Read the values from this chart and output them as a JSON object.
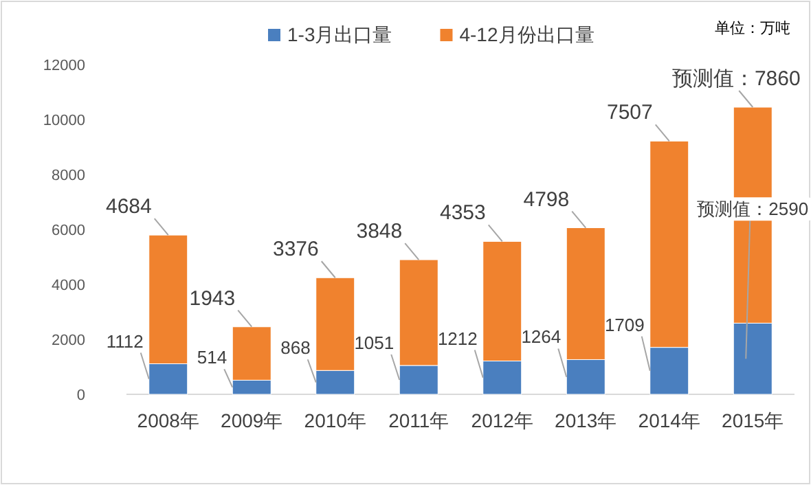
{
  "chart_data": {
    "type": "bar",
    "stacked": true,
    "categories": [
      "2008年",
      "2009年",
      "2010年",
      "2011年",
      "2012年",
      "2013年",
      "2014年",
      "2015年"
    ],
    "series": [
      {
        "name": "1-3月出口量",
        "color": "#4a7fbf",
        "values": [
          1112,
          514,
          868,
          1051,
          1212,
          1264,
          1709,
          2590
        ],
        "value_labels": [
          "1112",
          "514",
          "868",
          "1051",
          "1212",
          "1264",
          "1709",
          "预测值：2590"
        ]
      },
      {
        "name": "4-12月份出口量",
        "color": "#f0822e",
        "values": [
          4684,
          1943,
          3376,
          3848,
          4353,
          4798,
          7507,
          7860
        ],
        "value_labels": [
          "4684",
          "1943",
          "3376",
          "3848",
          "4353",
          "4798",
          "7507",
          "预测值：7860"
        ]
      }
    ],
    "ylim": [
      0,
      12000
    ],
    "yticks": [
      0,
      2000,
      4000,
      6000,
      8000,
      10000,
      12000
    ],
    "grid": false,
    "legend": "top",
    "annotations": [
      "单位：万吨"
    ]
  }
}
